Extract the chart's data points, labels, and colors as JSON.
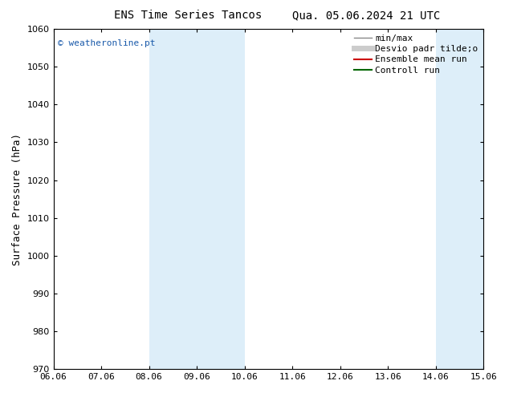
{
  "title_left": "ENS Time Series Tancos",
  "title_right": "Qua. 05.06.2024 21 UTC",
  "ylabel": "Surface Pressure (hPa)",
  "ylim": [
    970,
    1060
  ],
  "yticks": [
    970,
    980,
    990,
    1000,
    1010,
    1020,
    1030,
    1040,
    1050,
    1060
  ],
  "xtick_labels": [
    "06.06",
    "07.06",
    "08.06",
    "09.06",
    "10.06",
    "11.06",
    "12.06",
    "13.06",
    "14.06",
    "15.06"
  ],
  "watermark": "© weatheronline.pt",
  "shade_bands": [
    {
      "xmin": 2,
      "xmax": 3
    },
    {
      "xmin": 3,
      "xmax": 4
    },
    {
      "xmin": 8,
      "xmax": 9
    }
  ],
  "shade_color": "#ddeef9",
  "legend_entries": [
    {
      "label": "min/max",
      "color": "#888888",
      "lw": 1.0
    },
    {
      "label": "Desvio padr tilde;o",
      "color": "#cccccc",
      "lw": 5.0
    },
    {
      "label": "Ensemble mean run",
      "color": "#cc0000",
      "lw": 1.5
    },
    {
      "label": "Controll run",
      "color": "#006600",
      "lw": 1.5
    }
  ],
  "background_color": "#ffffff",
  "plot_bg_color": "#ffffff",
  "title_fontsize": 10,
  "label_fontsize": 9,
  "tick_fontsize": 8,
  "legend_fontsize": 8
}
